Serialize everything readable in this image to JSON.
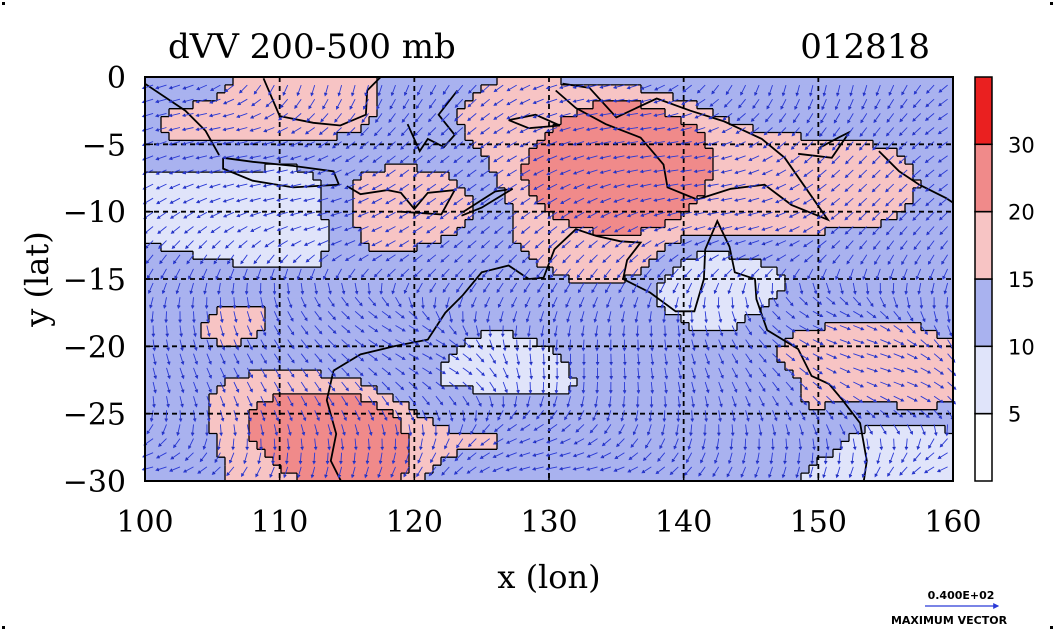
{
  "chart_data": {
    "type": "heatmap",
    "title": "dVV 200-500 mb",
    "date_label": "012818",
    "xlabel": "x (lon)",
    "ylabel": "y (lat)",
    "xlim": [
      100,
      160
    ],
    "ylim": [
      -30,
      0
    ],
    "xticks": [
      100,
      110,
      120,
      130,
      140,
      150,
      160
    ],
    "yticks": [
      0,
      -5,
      -10,
      -15,
      -20,
      -25,
      -30
    ],
    "xtick_labels": [
      "100",
      "110",
      "120",
      "130",
      "140",
      "150",
      "160"
    ],
    "ytick_labels": [
      "0",
      "−5",
      "−10",
      "−15",
      "−20",
      "−25",
      "−30"
    ],
    "grid": "dashed",
    "colorbar": {
      "levels": [
        5,
        10,
        15,
        20,
        30
      ],
      "tick_labels": [
        "5",
        "10",
        "15",
        "20",
        "30"
      ],
      "colors": [
        "#ffffff",
        "#e0e4fa",
        "#a9b2ef",
        "#f7c4c4",
        "#f08a8a",
        "#ea2020"
      ]
    },
    "vector_legend": {
      "value": "0.400E+02",
      "label": "MAXIMUM VECTOR",
      "color": "#2a3ad6"
    },
    "features": {
      "blobs": [
        {
          "lon": 114,
          "lat": -27.5,
          "value": 32
        },
        {
          "lon": 134,
          "lat": -5.5,
          "value": 31
        },
        {
          "lon": 135,
          "lat": -8,
          "value": 30
        },
        {
          "lon": 110,
          "lat": -26,
          "value": 22
        },
        {
          "lon": 138,
          "lat": -6,
          "value": 22
        },
        {
          "lon": 145,
          "lat": -8,
          "value": 20
        },
        {
          "lon": 152,
          "lat": -8,
          "value": 18
        },
        {
          "lon": 133,
          "lat": -13,
          "value": 20
        },
        {
          "lon": 155,
          "lat": -22,
          "value": 20
        },
        {
          "lon": 150,
          "lat": -26,
          "value": 18
        },
        {
          "lon": 148,
          "lat": -20.5,
          "value": 16
        },
        {
          "lon": 112,
          "lat": -1.5,
          "value": 18
        },
        {
          "lon": 104,
          "lat": -4,
          "value": 16
        },
        {
          "lon": 119,
          "lat": -10,
          "value": 18
        },
        {
          "lon": 128,
          "lat": -3,
          "value": 17
        },
        {
          "lon": 106,
          "lat": -18,
          "value": 16
        },
        {
          "lon": 118,
          "lat": -19,
          "value": 15
        },
        {
          "lon": 125,
          "lat": -26,
          "value": 16
        },
        {
          "lon": 137,
          "lat": -19,
          "value": 15
        },
        {
          "lon": 130,
          "lat": -16,
          "value": 13
        },
        {
          "lon": 109,
          "lat": -10.5,
          "value": 6
        },
        {
          "lon": 104,
          "lat": -9.5,
          "value": 7
        },
        {
          "lon": 126,
          "lat": -22,
          "value": 7
        },
        {
          "lon": 141,
          "lat": -17,
          "value": 6
        },
        {
          "lon": 153,
          "lat": -27.5,
          "value": 4
        },
        {
          "lon": 144,
          "lat": -24,
          "value": 12
        },
        {
          "lon": 100,
          "lat": -15,
          "value": 11
        },
        {
          "lon": 124,
          "lat": -16,
          "value": 11
        },
        {
          "lon": 140,
          "lat": -28,
          "value": 11
        },
        {
          "lon": 110,
          "lat": -30,
          "value": 17
        },
        {
          "lon": 102,
          "lat": -28,
          "value": 12
        }
      ]
    }
  }
}
